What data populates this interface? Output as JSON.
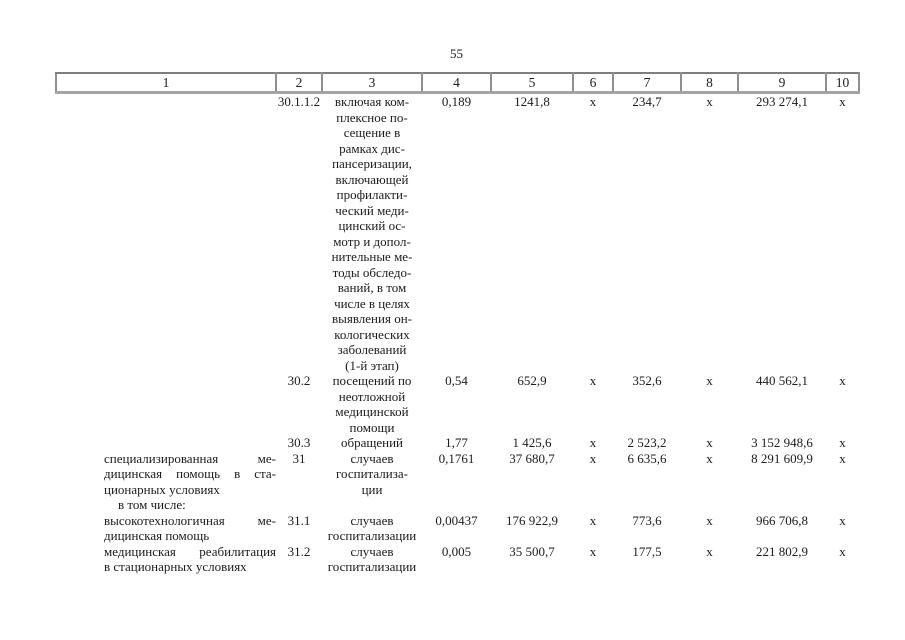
{
  "page": {
    "number": "55"
  },
  "table": {
    "header": [
      "1",
      "2",
      "3",
      "4",
      "5",
      "6",
      "7",
      "8",
      "9",
      "10"
    ],
    "rows": [
      {
        "name_lines": [],
        "code": "30.1.1.2",
        "unit": "включая ком-\nплексное по-\nсещение в\nрамках дис-\nпансеризации,\nвключающей\nпрофилакти-\nческий меди-\nцинский ос-\nмотр и допол-\nнительные ме-\nтоды обследо-\nваний, в том\nчисле в целях\nвыявления он-\nкологических\nзаболеваний\n(1-й этап)",
        "values": [
          "0,189",
          "1241,8",
          "х",
          "234,7",
          "х",
          "293 274,1",
          "х"
        ]
      },
      {
        "name_lines": [],
        "code": "30.2",
        "unit": "посещений по\nнеотложной\nмедицинской\nпомощи",
        "values": [
          "0,54",
          "652,9",
          "х",
          "352,6",
          "х",
          "440 562,1",
          "х"
        ]
      },
      {
        "name_lines": [],
        "code": "30.3",
        "unit": "обращений",
        "values": [
          "1,77",
          "1 425,6",
          "х",
          "2 523,2",
          "х",
          "3 152 948,6",
          "х"
        ]
      },
      {
        "name_lines": [
          "специализированная ме-",
          "дицинская помощь в ста-",
          "ционарных условиях",
          "в том числе:"
        ],
        "code": "31",
        "unit": "случаев\nгоспитализа-\nции",
        "values": [
          "0,1761",
          "37 680,7",
          "х",
          "6 635,6",
          "х",
          "8 291 609,9",
          "х"
        ]
      },
      {
        "name_lines": [
          "высокотехнологичная ме-",
          "дицинская помощь"
        ],
        "code": "31.1",
        "unit": "случаев\nгоспитализации",
        "values": [
          "0,00437",
          "176 922,9",
          "х",
          "773,6",
          "х",
          "966 706,8",
          "х"
        ]
      },
      {
        "name_lines": [
          "медицинская реабилитация",
          "в стационарных условиях"
        ],
        "code": "31.2",
        "unit": "случаев\nгоспитализации",
        "values": [
          "0,005",
          "35 500,7",
          "х",
          "177,5",
          "х",
          "221 802,9",
          "х"
        ]
      }
    ]
  }
}
